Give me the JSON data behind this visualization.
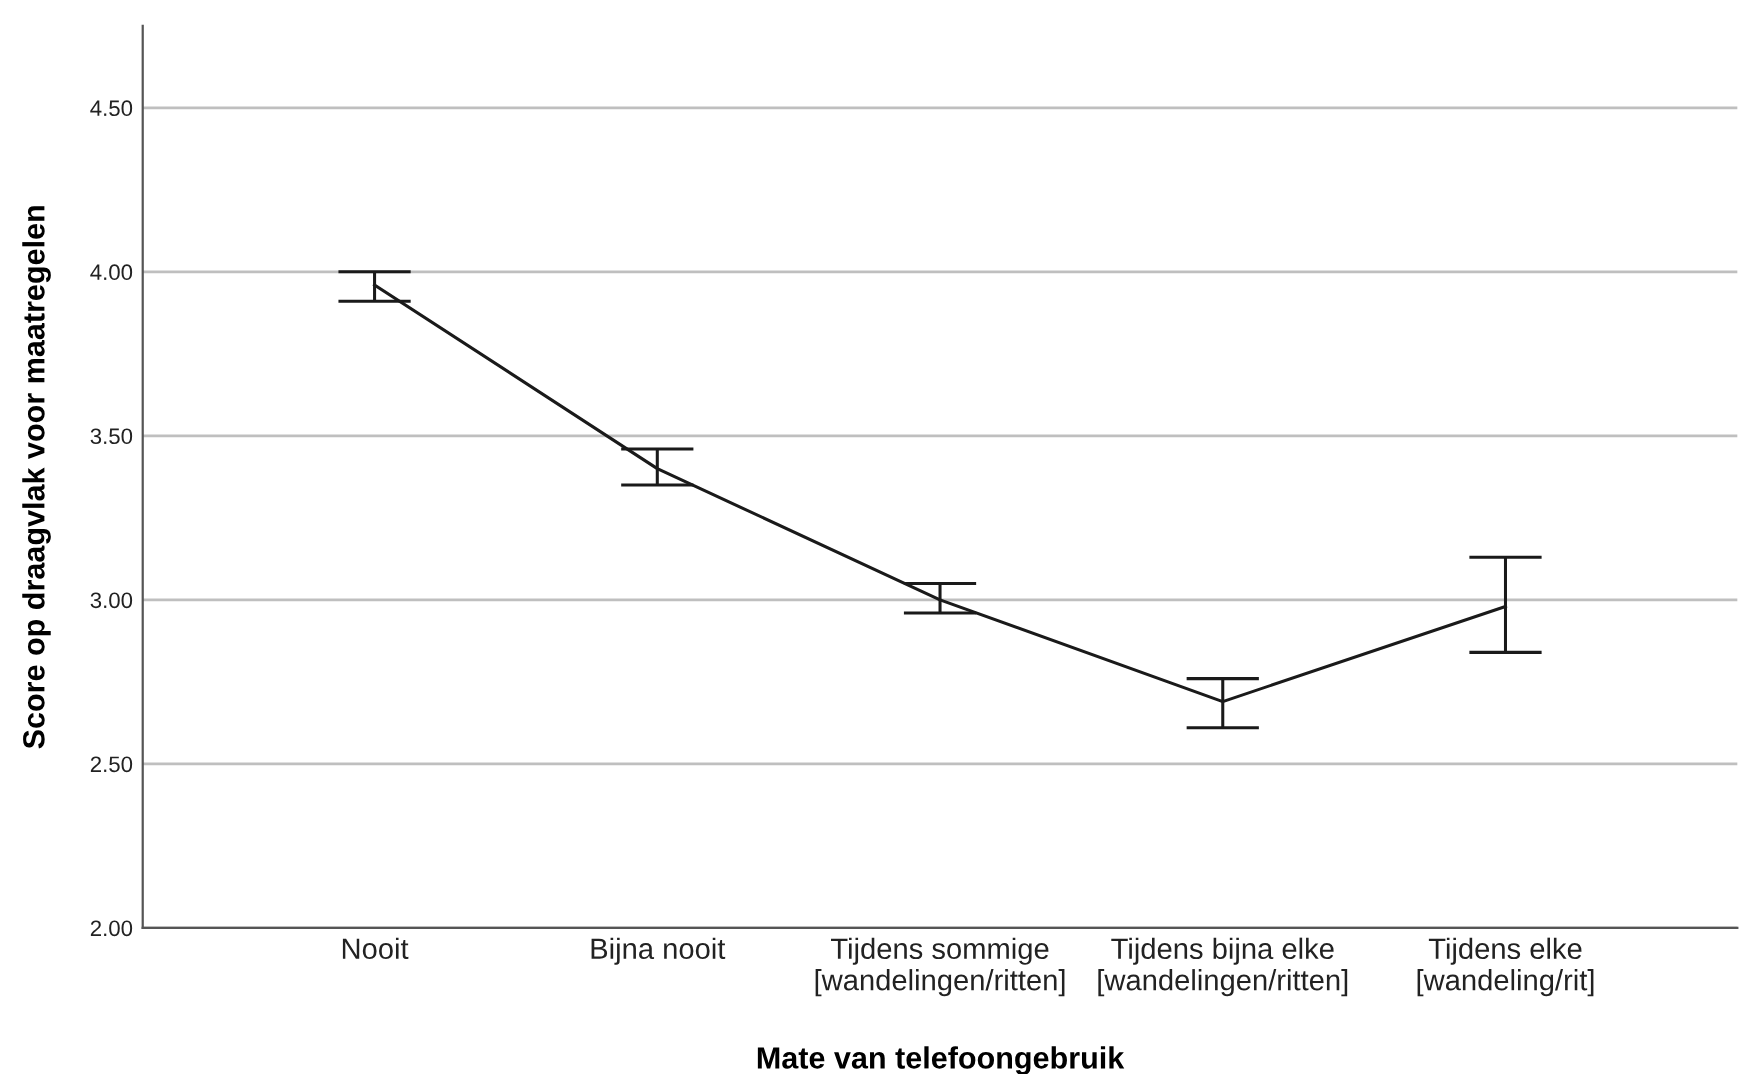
{
  "chart_data": {
    "type": "line",
    "xlabel": "Mate van telefoongebruik",
    "ylabel": "Score op draagvlak voor maatregelen",
    "categories": [
      "Nooit",
      "Bijna nooit",
      "Tijdens sommige\n[wandelingen/ritten]",
      "Tijdens bijna elke\n[wandelingen/ritten]",
      "Tijdens elke\n[wandeling/rit]"
    ],
    "series": [
      {
        "color": "#1a1a1a",
        "values": [
          3.96,
          3.4,
          3.0,
          2.69,
          2.98
        ],
        "errors": [
          [
            3.91,
            4.0
          ],
          [
            3.35,
            3.46
          ],
          [
            2.96,
            3.05
          ],
          [
            2.61,
            2.76
          ],
          [
            2.84,
            3.13
          ]
        ]
      }
    ],
    "ylim": [
      2.0,
      4.75
    ],
    "yticks": [
      {
        "value": 2.0,
        "label": "2.00"
      },
      {
        "value": 2.5,
        "label": "2.50"
      },
      {
        "value": 3.0,
        "label": "3.00"
      },
      {
        "value": 3.5,
        "label": "3.50"
      },
      {
        "value": 4.0,
        "label": "4.00"
      },
      {
        "value": 4.5,
        "label": "4.50"
      }
    ],
    "grid": "y",
    "marker": "none",
    "line_style": "solid",
    "legend": false
  }
}
